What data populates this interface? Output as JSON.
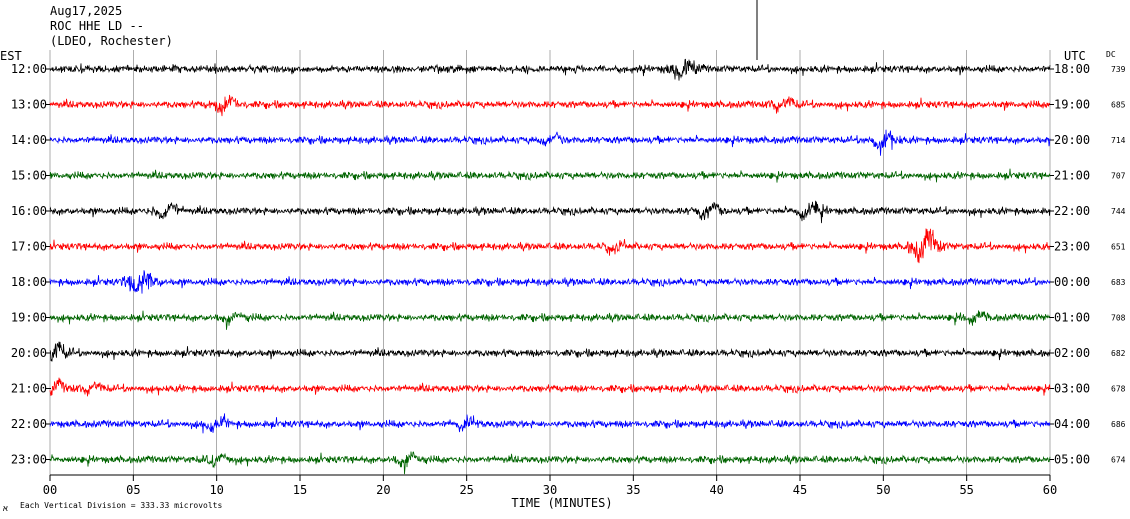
{
  "header": {
    "date": "Aug17,2025",
    "station": "ROC HHE LD --",
    "network": "(LDEO, Rochester)"
  },
  "labels": {
    "left_tz": "EST",
    "right_tz": "UTC",
    "dc_header": "DC",
    "x_axis": "TIME (MINUTES)",
    "footer_mark": "א",
    "footer": "Each Vertical Division =  333.33 microvolts"
  },
  "colors": [
    "#000000",
    "#ff0000",
    "#0000ff",
    "#006400"
  ],
  "chart_data": {
    "type": "line",
    "title": "ROC HHE LD -- (LDEO, Rochester)",
    "xlabel": "TIME (MINUTES)",
    "xlim": [
      0,
      60
    ],
    "x_ticks": [
      "00",
      "05",
      "10",
      "15",
      "20",
      "25",
      "30",
      "35",
      "40",
      "45",
      "50",
      "55",
      "60"
    ],
    "vertical_division_microvolts": 333.33,
    "rows": [
      {
        "est": "12:00",
        "utc": "18:00",
        "dc": "739",
        "color": "#000000",
        "events": [
          {
            "minute": 38,
            "amp": 2.2
          }
        ]
      },
      {
        "est": "13:00",
        "utc": "19:00",
        "dc": "685",
        "color": "#ff0000",
        "events": [
          {
            "minute": 10.5,
            "amp": 1.8
          },
          {
            "minute": 44,
            "amp": 1.6
          }
        ]
      },
      {
        "est": "14:00",
        "utc": "20:00",
        "dc": "714",
        "color": "#0000ff",
        "events": [
          {
            "minute": 50,
            "amp": 2.0
          },
          {
            "minute": 30,
            "amp": 1.4
          }
        ]
      },
      {
        "est": "15:00",
        "utc": "21:00",
        "dc": "707",
        "color": "#006400",
        "events": []
      },
      {
        "est": "16:00",
        "utc": "22:00",
        "dc": "744",
        "color": "#000000",
        "events": [
          {
            "minute": 7,
            "amp": 1.8
          },
          {
            "minute": 39.5,
            "amp": 1.6
          },
          {
            "minute": 45.5,
            "amp": 2.0
          }
        ]
      },
      {
        "est": "17:00",
        "utc": "23:00",
        "dc": "651",
        "color": "#ff0000",
        "events": [
          {
            "minute": 52.5,
            "amp": 3.0
          },
          {
            "minute": 34,
            "amp": 1.3
          }
        ]
      },
      {
        "est": "18:00",
        "utc": "00:00",
        "dc": "683",
        "color": "#0000ff",
        "events": [
          {
            "minute": 5.5,
            "amp": 2.8
          }
        ]
      },
      {
        "est": "19:00",
        "utc": "01:00",
        "dc": "708",
        "color": "#006400",
        "events": [
          {
            "minute": 11,
            "amp": 1.4
          },
          {
            "minute": 55.5,
            "amp": 1.4
          }
        ]
      },
      {
        "est": "20:00",
        "utc": "02:00",
        "dc": "682",
        "color": "#000000",
        "events": [
          {
            "minute": 0.2,
            "amp": 2.2
          }
        ]
      },
      {
        "est": "21:00",
        "utc": "03:00",
        "dc": "678",
        "color": "#ff0000",
        "events": [
          {
            "minute": 0.2,
            "amp": 1.6
          },
          {
            "minute": 2.5,
            "amp": 1.4
          }
        ]
      },
      {
        "est": "22:00",
        "utc": "04:00",
        "dc": "686",
        "color": "#0000ff",
        "events": [
          {
            "minute": 10,
            "amp": 1.6
          },
          {
            "minute": 25,
            "amp": 1.4
          }
        ]
      },
      {
        "est": "23:00",
        "utc": "05:00",
        "dc": "674",
        "color": "#006400",
        "events": [
          {
            "minute": 10,
            "amp": 1.5
          },
          {
            "minute": 21.5,
            "amp": 1.6
          }
        ]
      }
    ]
  }
}
